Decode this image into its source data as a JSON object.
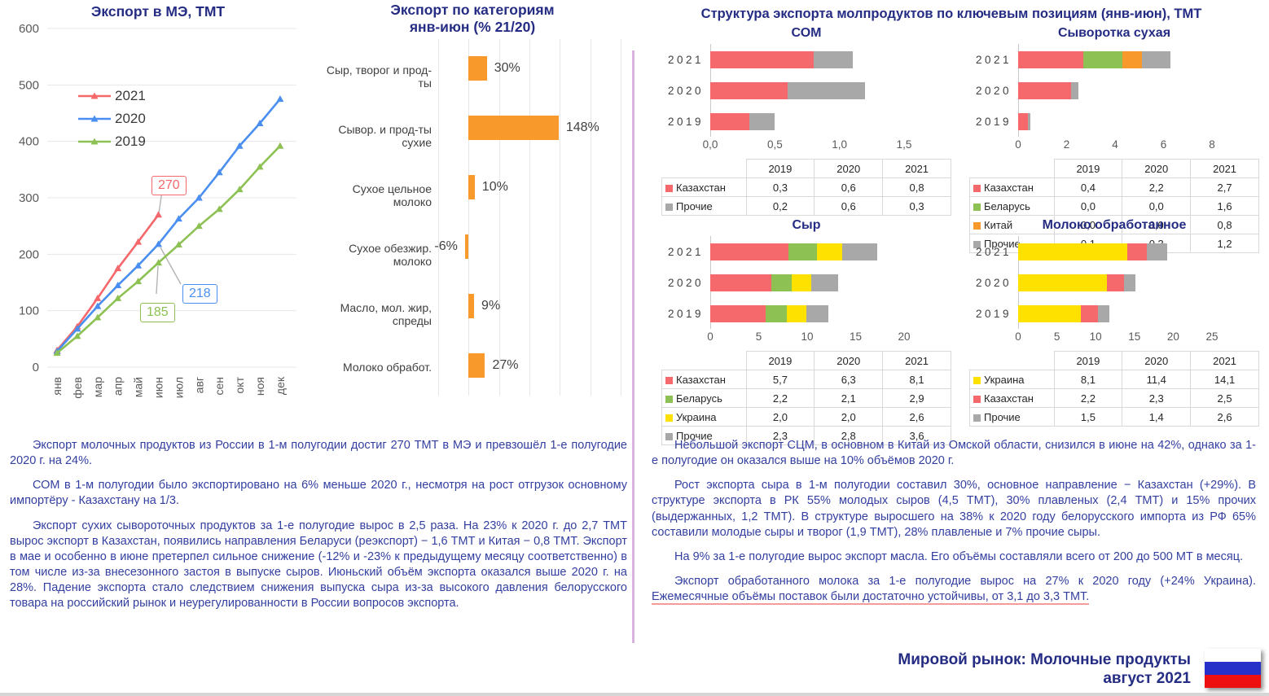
{
  "structure_panel": {
    "title": "Структура экспорта молпродуктов по ключевым позициям (янв-июн), ТМТ"
  },
  "footer": {
    "line1": "Мировой рынок: Молочные продукты",
    "line2": "август 2021",
    "flag": "russia-flag",
    "flag_colors": [
      "#ffffff",
      "#2730c8",
      "#ee1010"
    ]
  },
  "colors": {
    "title_navy": "#252c83",
    "paragraph_blue": "#333fa0",
    "orange": "#f8992c",
    "red": "#f5686c",
    "blue": "#4a8ff0",
    "green": "#8dc153",
    "yellow": "#ffe100",
    "gray": "#a8a8a8",
    "divider_purple": "#d9b4de"
  },
  "texts": {
    "left_paragraphs": [
      "Экспорт молочных продуктов из России в 1-м полугодии достиг 270 ТМТ в МЭ и превзошёл 1-е полугодие 2020 г. на 24%.",
      "СОМ в 1-м полугодии было экспортировано на 6% меньше 2020 г., несмотря на рост отгрузок основному импортёру - Казахстану на 1/3.",
      "Экспорт сухих сывороточных продуктов за 1-е полугодие вырос в 2,5  раза. На 23% к 2020 г. до 2,7 ТМТ вырос экспорт в Казахстан, появились направления Беларуси (реэкспорт) − 1,6 ТМТ и Китая − 0,8 ТМТ. Экспорт в мае и особенно в июне претерпел сильное снижение (-12% и -23% к предыдущему месяцу соответственно) в том числе из-за внесезонного застоя в выпуске сыров. Июньский объём экспорта оказался выше 2020 г. на 28%. Падение экспорта стало следствием снижения выпуска сыра из-за высокого давления белорусского товара на российский рынок и неурегулированности в России вопросов экспорта."
    ],
    "right_paragraphs": [
      "Небольшой экспорт СЦМ, в основном в Китай из Омской области, снизился в июне на 42%, однако за 1-е полугодие он оказался выше на 10% объёмов 2020 г.",
      "Рост экспорта сыра в 1-м полугодии составил 30%, основное направление − Казахстан (+29%). В структуре экспорта в РК 55% молодых сыров (4,5 ТМТ), 30% плавленых (2,4 ТМТ) и 15% прочих (выдержанных, 1,2 ТМТ). В структуре выросшего на 38% к 2020 году белорусского импорта из РФ 65% составили молодые сыры и творог (1,9 ТМТ), 28% плавленые и 7% прочие сыры.",
      "На 9% за 1-е полугодие вырос экспорт масла. Его объёмы составляли всего от 200 до 500 МТ в месяц."
    ],
    "right_p4": {
      "lead": "Экспорт обработанного молока за 1-е полугодие вырос на 27% к 2020 году (+24% Украина). ",
      "underlined": "Ежемесячные объёмы поставок были достаточно устойчивы, от 3,1 до 3,3 ТМТ."
    }
  },
  "chart_data": [
    {
      "id": "export_me",
      "type": "line",
      "title": "Экспорт в МЭ, ТМТ",
      "categories": [
        "янв",
        "фев",
        "мар",
        "апр",
        "май",
        "июн",
        "июл",
        "авг",
        "сен",
        "окт",
        "ноя",
        "дек"
      ],
      "ylim": [
        0,
        600
      ],
      "yticks": [
        0,
        100,
        200,
        300,
        400,
        500,
        600
      ],
      "grid": true,
      "legend_position": "top-left",
      "series": [
        {
          "name": "2021",
          "color": "#f5686c",
          "values": [
            30,
            72,
            122,
            175,
            222,
            270
          ],
          "callout": {
            "label": "270",
            "month_index": 5,
            "value": 270
          }
        },
        {
          "name": "2020",
          "color": "#4a8ff0",
          "values": [
            28,
            68,
            108,
            145,
            180,
            218,
            263,
            300,
            345,
            392,
            432,
            475
          ],
          "callout": {
            "label": "218",
            "month_index": 5,
            "value": 218
          }
        },
        {
          "name": "2019",
          "color": "#8dc153",
          "values": [
            25,
            55,
            88,
            122,
            152,
            185,
            217,
            250,
            280,
            315,
            355,
            392
          ],
          "callout": {
            "label": "185",
            "month_index": 5,
            "value": 185
          }
        }
      ]
    },
    {
      "id": "categories_pct",
      "type": "bar",
      "orientation": "horizontal",
      "title": "Экспорт по категориям\nянв-июн (% 21/20)",
      "bar_color": "#f8992c",
      "categories": [
        "Сыр, творог и прод-ты",
        "Сывор. и прод-ты сухие",
        "Сухое цельное молоко",
        "Сухое обезжир. молоко",
        "Масло, мол. жир, спреды",
        "Молоко обработ."
      ],
      "values": [
        30,
        148,
        10,
        -6,
        9,
        27
      ],
      "labels": [
        "30%",
        "148%",
        "10%",
        "-6%",
        "9%",
        "27%"
      ],
      "xlim": [
        -50,
        250
      ],
      "grid_step": 50
    },
    {
      "id": "som",
      "type": "stacked-bar-h",
      "title": "СОМ",
      "bar_years": [
        "2021",
        "2020",
        "2019"
      ],
      "xmax": 1.5,
      "xticks": [
        {
          "label": "0,0",
          "value": 0
        },
        {
          "label": "0,5",
          "value": 0.5
        },
        {
          "label": "1,0",
          "value": 1.0
        },
        {
          "label": "1,5",
          "value": 1.5
        }
      ],
      "table_columns": [
        "2019",
        "2020",
        "2021"
      ],
      "series": [
        {
          "name": "Казахстан",
          "color": "#f5686c",
          "values": {
            "2019": 0.3,
            "2020": 0.6,
            "2021": 0.8
          },
          "display": {
            "2019": "0,3",
            "2020": "0,6",
            "2021": "0,8"
          }
        },
        {
          "name": "Прочие",
          "color": "#a8a8a8",
          "values": {
            "2019": 0.2,
            "2020": 0.6,
            "2021": 0.3
          },
          "display": {
            "2019": "0,2",
            "2020": "0,6",
            "2021": "0,3"
          }
        }
      ]
    },
    {
      "id": "whey",
      "type": "stacked-bar-h",
      "title": "Сыворотка сухая",
      "bar_years": [
        "2021",
        "2020",
        "2019"
      ],
      "xmax": 8,
      "xticks": [
        {
          "label": "0",
          "value": 0
        },
        {
          "label": "2",
          "value": 2
        },
        {
          "label": "4",
          "value": 4
        },
        {
          "label": "6",
          "value": 6
        },
        {
          "label": "8",
          "value": 8
        }
      ],
      "table_columns": [
        "2019",
        "2020",
        "2021"
      ],
      "series": [
        {
          "name": "Казахстан",
          "color": "#f5686c",
          "values": {
            "2019": 0.4,
            "2020": 2.2,
            "2021": 2.7
          },
          "display": {
            "2019": "0,4",
            "2020": "2,2",
            "2021": "2,7"
          }
        },
        {
          "name": "Беларусь",
          "color": "#8dc153",
          "values": {
            "2019": 0.0,
            "2020": 0.0,
            "2021": 1.6
          },
          "display": {
            "2019": "0,0",
            "2020": "0,0",
            "2021": "1,6"
          }
        },
        {
          "name": "Китай",
          "color": "#f8992c",
          "values": {
            "2019": 0.0,
            "2020": 0.0,
            "2021": 0.8
          },
          "display": {
            "2019": "0,0",
            "2020": "0,0",
            "2021": "0,8"
          }
        },
        {
          "name": "Прочие",
          "color": "#a8a8a8",
          "values": {
            "2019": 0.1,
            "2020": 0.3,
            "2021": 1.2
          },
          "display": {
            "2019": "0,1",
            "2020": "0,3",
            "2021": "1,2"
          }
        }
      ]
    },
    {
      "id": "cheese",
      "type": "stacked-bar-h",
      "title": "Сыр",
      "bar_years": [
        "2021",
        "2020",
        "2019"
      ],
      "xmax": 20,
      "xticks": [
        {
          "label": "0",
          "value": 0
        },
        {
          "label": "5",
          "value": 5
        },
        {
          "label": "10",
          "value": 10
        },
        {
          "label": "15",
          "value": 15
        },
        {
          "label": "20",
          "value": 20
        }
      ],
      "table_columns": [
        "2019",
        "2020",
        "2021"
      ],
      "series": [
        {
          "name": "Казахстан",
          "color": "#f5686c",
          "values": {
            "2019": 5.7,
            "2020": 6.3,
            "2021": 8.1
          },
          "display": {
            "2019": "5,7",
            "2020": "6,3",
            "2021": "8,1"
          }
        },
        {
          "name": "Беларусь",
          "color": "#8dc153",
          "values": {
            "2019": 2.2,
            "2020": 2.1,
            "2021": 2.9
          },
          "display": {
            "2019": "2,2",
            "2020": "2,1",
            "2021": "2,9"
          }
        },
        {
          "name": "Украина",
          "color": "#ffe100",
          "values": {
            "2019": 2.0,
            "2020": 2.0,
            "2021": 2.6
          },
          "display": {
            "2019": "2,0",
            "2020": "2,0",
            "2021": "2,6"
          }
        },
        {
          "name": "Прочие",
          "color": "#a8a8a8",
          "values": {
            "2019": 2.3,
            "2020": 2.8,
            "2021": 3.6
          },
          "display": {
            "2019": "2,3",
            "2020": "2,8",
            "2021": "3,6"
          }
        }
      ]
    },
    {
      "id": "milk",
      "type": "stacked-bar-h",
      "title": "Молоко обработанное",
      "bar_years": [
        "2021",
        "2020",
        "2019"
      ],
      "xmax": 25,
      "xticks": [
        {
          "label": "0",
          "value": 0
        },
        {
          "label": "5",
          "value": 5
        },
        {
          "label": "10",
          "value": 10
        },
        {
          "label": "15",
          "value": 15
        },
        {
          "label": "20",
          "value": 20
        },
        {
          "label": "25",
          "value": 25
        }
      ],
      "table_columns": [
        "2019",
        "2020",
        "2021"
      ],
      "series": [
        {
          "name": "Украина",
          "color": "#ffe100",
          "values": {
            "2019": 8.1,
            "2020": 11.4,
            "2021": 14.1
          },
          "display": {
            "2019": "8,1",
            "2020": "11,4",
            "2021": "14,1"
          }
        },
        {
          "name": "Казахстан",
          "color": "#f5686c",
          "values": {
            "2019": 2.2,
            "2020": 2.3,
            "2021": 2.5
          },
          "display": {
            "2019": "2,2",
            "2020": "2,3",
            "2021": "2,5"
          }
        },
        {
          "name": "Прочие",
          "color": "#a8a8a8",
          "values": {
            "2019": 1.5,
            "2020": 1.4,
            "2021": 2.6
          },
          "display": {
            "2019": "1,5",
            "2020": "1,4",
            "2021": "2,6"
          }
        }
      ]
    }
  ]
}
